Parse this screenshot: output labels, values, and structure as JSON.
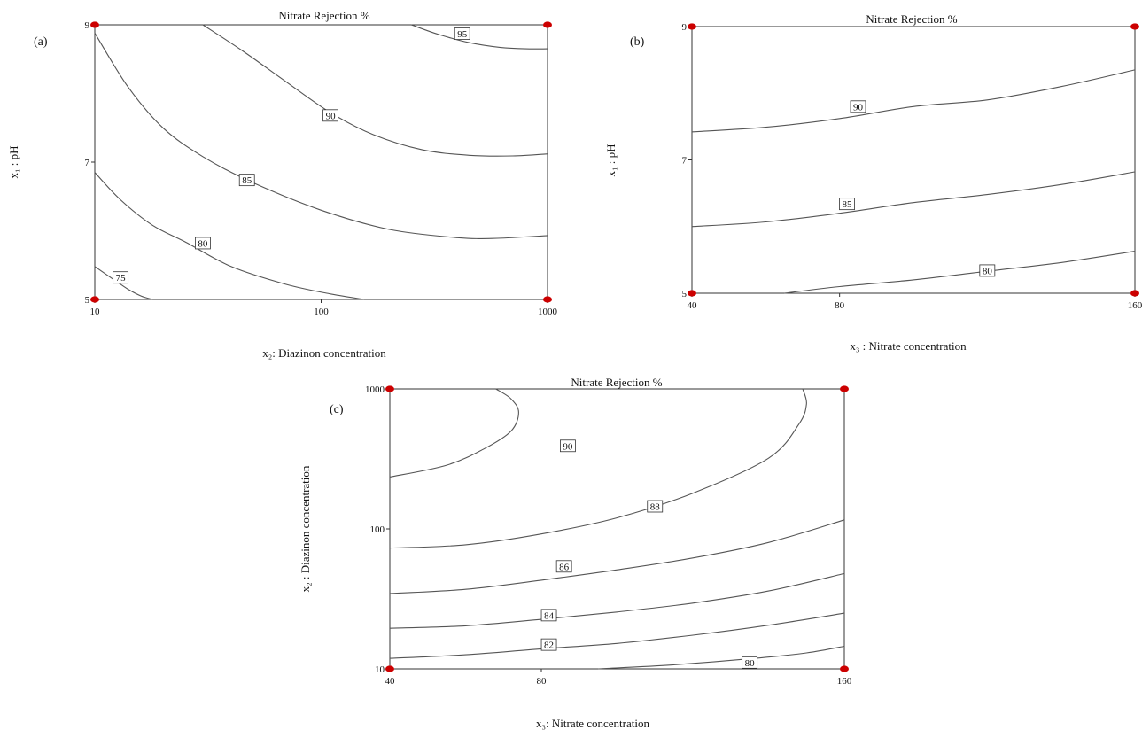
{
  "chart_data": [
    {
      "type": "contour",
      "panel_label": "(a)",
      "title": "Nitrate Rejection %",
      "xlabel": "x₂: Diazinon concentration",
      "ylabel": "x₁ :  pH",
      "x_scale": "log",
      "xlim": [
        10,
        1000
      ],
      "ylim": [
        5,
        9
      ],
      "x_ticks": [
        "10",
        "100",
        "1000"
      ],
      "y_ticks": [
        "5",
        "7",
        "9"
      ],
      "design_points": [
        [
          10,
          5
        ],
        [
          10,
          9
        ],
        [
          1000,
          5
        ],
        [
          1000,
          9
        ]
      ],
      "contours": [
        {
          "level": "75",
          "label_at": [
            13,
            5.32
          ],
          "points": [
            [
              10,
              5.48
            ],
            [
              12,
              5.3
            ],
            [
              14,
              5.15
            ],
            [
              16,
              5.05
            ],
            [
              18,
              5.0
            ]
          ]
        },
        {
          "level": "80",
          "label_at": [
            30,
            5.82
          ],
          "points": [
            [
              10,
              6.85
            ],
            [
              13,
              6.45
            ],
            [
              18,
              6.08
            ],
            [
              25,
              5.84
            ],
            [
              40,
              5.48
            ],
            [
              70,
              5.22
            ],
            [
              110,
              5.08
            ],
            [
              155,
              5.0
            ]
          ]
        },
        {
          "level": "85",
          "label_at": [
            47,
            6.74
          ],
          "points": [
            [
              10,
              8.88
            ],
            [
              14,
              8.1
            ],
            [
              20,
              7.5
            ],
            [
              30,
              7.08
            ],
            [
              50,
              6.7
            ],
            [
              100,
              6.3
            ],
            [
              200,
              6.02
            ],
            [
              400,
              5.9
            ],
            [
              600,
              5.89
            ],
            [
              1000,
              5.93
            ]
          ]
        },
        {
          "level": "90",
          "label_at": [
            110,
            7.68
          ],
          "points": [
            [
              30,
              9.0
            ],
            [
              45,
              8.62
            ],
            [
              70,
              8.17
            ],
            [
              110,
              7.72
            ],
            [
              170,
              7.4
            ],
            [
              280,
              7.18
            ],
            [
              450,
              7.1
            ],
            [
              700,
              7.09
            ],
            [
              1000,
              7.12
            ]
          ]
        },
        {
          "level": "95",
          "label_at": [
            420,
            8.87
          ],
          "points": [
            [
              250,
              9.0
            ],
            [
              330,
              8.86
            ],
            [
              450,
              8.74
            ],
            [
              620,
              8.67
            ],
            [
              800,
              8.65
            ],
            [
              1000,
              8.65
            ]
          ]
        }
      ]
    },
    {
      "type": "contour",
      "panel_label": "(b)",
      "title": "Nitrate Rejection %",
      "xlabel": "x₃ :  Nitrate concentration",
      "ylabel": "x₁ :  pH",
      "x_scale": "linear",
      "xlim": [
        40,
        160
      ],
      "ylim": [
        5,
        9
      ],
      "x_ticks": [
        "40",
        "80",
        "160"
      ],
      "y_ticks": [
        "5",
        "7",
        "9"
      ],
      "design_points": [
        [
          40,
          5
        ],
        [
          40,
          9
        ],
        [
          160,
          5
        ],
        [
          160,
          9
        ]
      ],
      "contours": [
        {
          "level": "80",
          "label_at": [
            120,
            5.34
          ],
          "points": [
            [
              65,
              5.0
            ],
            [
              80,
              5.1
            ],
            [
              100,
              5.2
            ],
            [
              120,
              5.33
            ],
            [
              140,
              5.46
            ],
            [
              160,
              5.63
            ]
          ]
        },
        {
          "level": "85",
          "label_at": [
            82,
            6.34
          ],
          "points": [
            [
              40,
              6.0
            ],
            [
              60,
              6.07
            ],
            [
              80,
              6.2
            ],
            [
              100,
              6.36
            ],
            [
              120,
              6.48
            ],
            [
              140,
              6.63
            ],
            [
              160,
              6.82
            ]
          ]
        },
        {
          "level": "90",
          "label_at": [
            85,
            7.8
          ],
          "points": [
            [
              40,
              7.42
            ],
            [
              60,
              7.49
            ],
            [
              80,
              7.62
            ],
            [
              100,
              7.8
            ],
            [
              120,
              7.9
            ],
            [
              140,
              8.1
            ],
            [
              160,
              8.35
            ]
          ]
        }
      ]
    },
    {
      "type": "contour",
      "panel_label": "(c)",
      "title": "Nitrate Rejection %",
      "xlabel": "x₃: Nitrate concentration",
      "ylabel": "x₂ :  Diazinon concentration",
      "x_scale": "linear",
      "y_scale": "log",
      "xlim": [
        40,
        160
      ],
      "ylim": [
        10,
        1000
      ],
      "x_ticks": [
        "40",
        "80",
        "160"
      ],
      "y_ticks": [
        "10",
        "100",
        "1000"
      ],
      "design_points": [
        [
          40,
          10
        ],
        [
          40,
          1000
        ],
        [
          160,
          10
        ],
        [
          160,
          1000
        ]
      ],
      "contours": [
        {
          "level": "80",
          "label_at": [
            135,
            11.1
          ],
          "points": [
            [
              95,
              10.0
            ],
            [
              115,
              10.7
            ],
            [
              135,
              11.8
            ],
            [
              150,
              13.0
            ],
            [
              160,
              14.5
            ]
          ]
        },
        {
          "level": "82",
          "label_at": [
            82,
            14.9
          ],
          "points": [
            [
              40,
              11.9
            ],
            [
              60,
              12.6
            ],
            [
              80,
              13.9
            ],
            [
              100,
              15.2
            ],
            [
              120,
              17.4
            ],
            [
              140,
              20.5
            ],
            [
              160,
              25.0
            ]
          ]
        },
        {
          "level": "84",
          "label_at": [
            82,
            24.2
          ],
          "points": [
            [
              40,
              19.5
            ],
            [
              60,
              20.3
            ],
            [
              80,
              22.6
            ],
            [
              100,
              25.5
            ],
            [
              120,
              29.5
            ],
            [
              140,
              36.0
            ],
            [
              160,
              48.0
            ]
          ]
        },
        {
          "level": "86",
          "label_at": [
            86,
            54.0
          ],
          "points": [
            [
              40,
              34.5
            ],
            [
              60,
              37.0
            ],
            [
              80,
              43.0
            ],
            [
              100,
              51.0
            ],
            [
              120,
              62.0
            ],
            [
              140,
              80.0
            ],
            [
              160,
              116.0
            ]
          ]
        },
        {
          "level": "88",
          "label_at": [
            110,
            145.0
          ],
          "points": [
            [
              40,
              73.0
            ],
            [
              60,
              77.0
            ],
            [
              80,
              92.0
            ],
            [
              100,
              120.0
            ],
            [
              120,
              180.0
            ],
            [
              140,
              320.0
            ],
            [
              148,
              560.0
            ],
            [
              150,
              780.0
            ],
            [
              149,
              1000.0
            ]
          ]
        },
        {
          "level": "90",
          "label_at": [
            87,
            392.0
          ],
          "points": [
            [
              40,
              235.0
            ],
            [
              55,
              285.0
            ],
            [
              65,
              375.0
            ],
            [
              72,
              500.0
            ],
            [
              74,
              680.0
            ],
            [
              72,
              850.0
            ],
            [
              68,
              1000.0
            ]
          ]
        }
      ]
    }
  ],
  "colors": {
    "frame": "#333333",
    "contour": "#555555",
    "design_point": "#cc0000"
  }
}
